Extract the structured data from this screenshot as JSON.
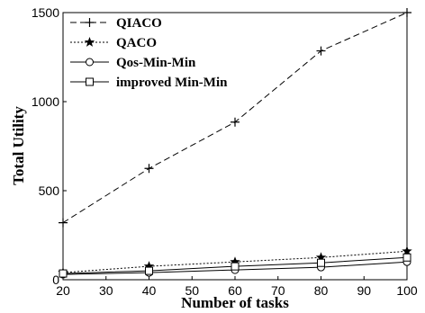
{
  "chart_data": {
    "type": "line",
    "xlabel": "Number of tasks",
    "ylabel": "Total Utility",
    "xlim": [
      20,
      100
    ],
    "ylim": [
      0,
      1500
    ],
    "x_ticks": [
      20,
      30,
      40,
      50,
      60,
      70,
      80,
      90,
      100
    ],
    "y_ticks": [
      0,
      500,
      1000,
      1500
    ],
    "grid": false,
    "legend_position": "top-left",
    "x": [
      20,
      40,
      60,
      80,
      100
    ],
    "series": [
      {
        "name": "QIACO",
        "marker": "plus",
        "line_style": "dashed",
        "values": [
          320,
          625,
          885,
          1285,
          1500
        ]
      },
      {
        "name": "QACO",
        "marker": "star",
        "line_style": "dotted",
        "values": [
          40,
          75,
          100,
          125,
          160
        ]
      },
      {
        "name": "Qos-Min-Min",
        "marker": "circle",
        "line_style": "solid",
        "values": [
          30,
          40,
          55,
          70,
          100
        ]
      },
      {
        "name": "improved Min-Min",
        "marker": "square",
        "line_style": "solid",
        "values": [
          35,
          50,
          75,
          95,
          125
        ]
      }
    ]
  }
}
